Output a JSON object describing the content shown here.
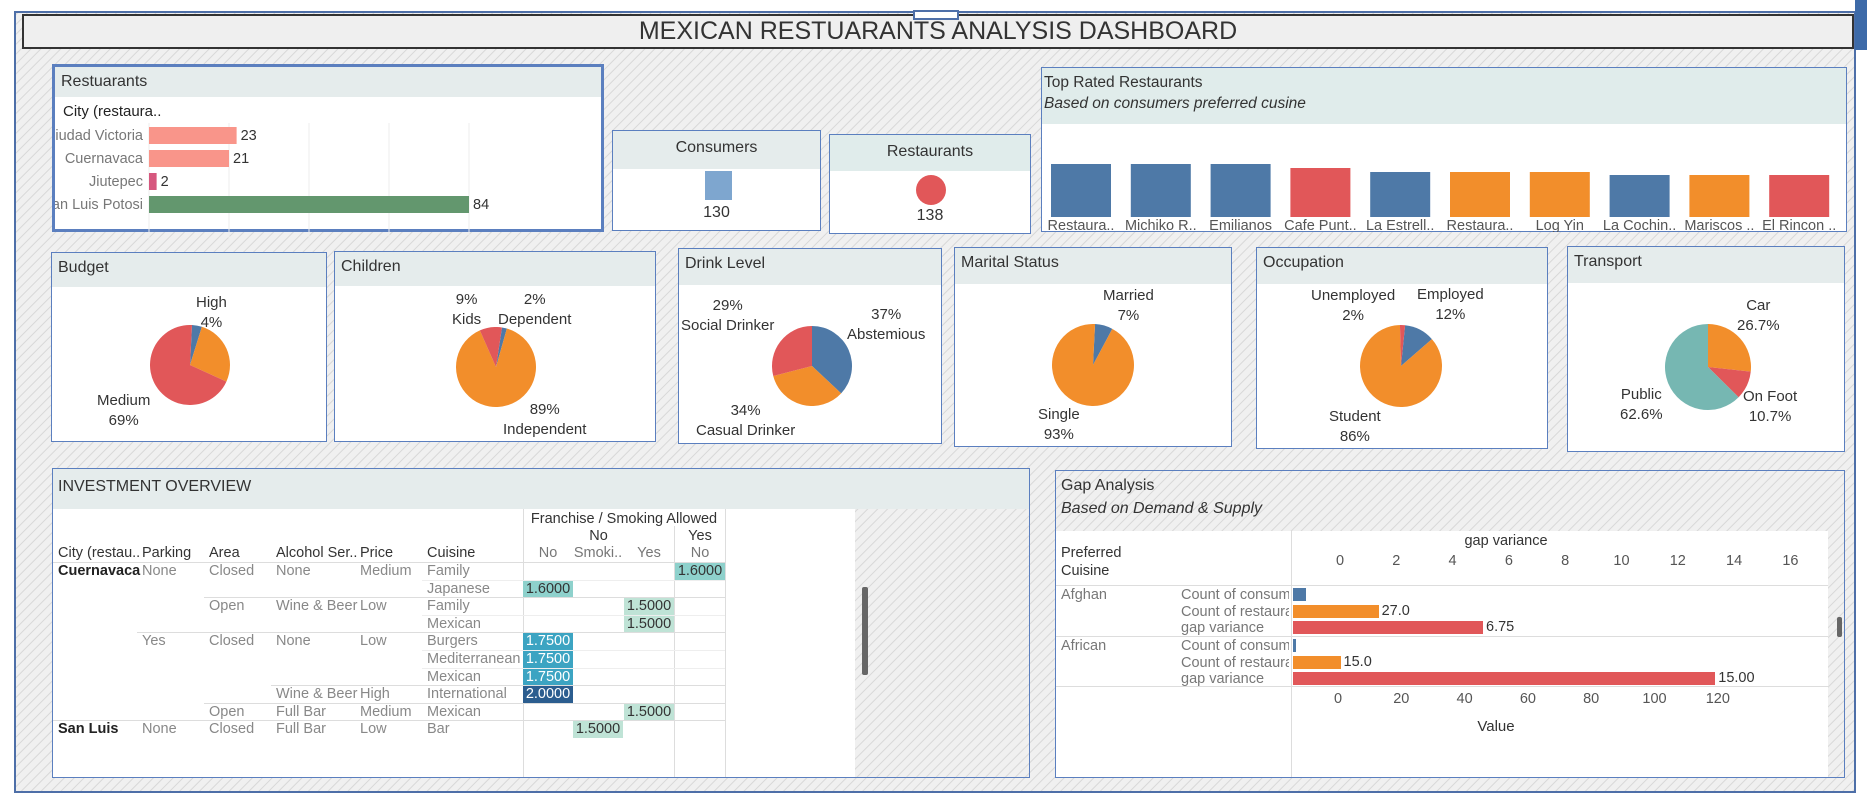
{
  "dashboard_title": "MEXICAN RESTUARANTS ANALYSIS DASHBOARD",
  "colors": {
    "blue": "#4e79a7",
    "orange": "#f28e2b",
    "red": "#e15759",
    "teal": "#76b7b2",
    "salmon": "#f9958a",
    "green": "#63976e",
    "pink": "#d6577e",
    "lightblue": "#7ea6cf"
  },
  "restaurants_city": {
    "title": "Restuarants",
    "col_header": "City (restaura..",
    "rows": [
      {
        "city": "Ciudad Victoria",
        "value": 23,
        "color": "#f9958a"
      },
      {
        "city": "Cuernavaca",
        "value": 21,
        "color": "#f9958a"
      },
      {
        "city": "Jiutepec",
        "value": 2,
        "color": "#d6577e"
      },
      {
        "city": "San Luis Potosi",
        "value": 84,
        "color": "#63976e"
      }
    ],
    "max": 84
  },
  "kpis": {
    "consumers": {
      "title": "Consumers",
      "value": "130"
    },
    "restaurants": {
      "title": "Restaurants",
      "value": "138"
    }
  },
  "top_rated": {
    "title": "Top Rated Restaurants",
    "subtitle": "Based on consumers preferred cusine",
    "bars": [
      {
        "label": "Restaura..",
        "height": 0.66,
        "color": "#4e79a7"
      },
      {
        "label": "Michiko R..",
        "height": 0.66,
        "color": "#4e79a7"
      },
      {
        "label": "Emilianos",
        "height": 0.66,
        "color": "#4e79a7"
      },
      {
        "label": "Cafe Punt..",
        "height": 0.62,
        "color": "#e15759"
      },
      {
        "label": "La Estrell..",
        "height": 0.58,
        "color": "#4e79a7"
      },
      {
        "label": "Restaura..",
        "height": 0.58,
        "color": "#f28e2b"
      },
      {
        "label": "Log Yin",
        "height": 0.58,
        "color": "#f28e2b"
      },
      {
        "label": "La Cochin..",
        "height": 0.55,
        "color": "#4e79a7"
      },
      {
        "label": "Mariscos ..",
        "height": 0.55,
        "color": "#f28e2b"
      },
      {
        "label": "El Rincon ..",
        "height": 0.55,
        "color": "#e15759"
      }
    ]
  },
  "pies": {
    "budget": {
      "title": "Budget",
      "slices": [
        {
          "label": "High",
          "pct": "4%",
          "value": 4,
          "color": "#4e79a7"
        },
        {
          "label": "",
          "pct": "",
          "value": 27,
          "color": "#f28e2b"
        },
        {
          "label": "Medium",
          "pct": "69%",
          "value": 69,
          "color": "#e15759"
        }
      ]
    },
    "children": {
      "title": "Children",
      "slices": [
        {
          "label": "Kids",
          "pct": "9%",
          "value": 9,
          "color": "#e15759"
        },
        {
          "label": "Dependent",
          "pct": "2%",
          "value": 2,
          "color": "#4e79a7"
        },
        {
          "label": "Independent",
          "pct": "89%",
          "value": 89,
          "color": "#f28e2b"
        }
      ]
    },
    "drink": {
      "title": "Drink Level",
      "slices": [
        {
          "label": "Abstemious",
          "pct": "37%",
          "value": 37,
          "color": "#4e79a7"
        },
        {
          "label": "Casual Drinker",
          "pct": "34%",
          "value": 34,
          "color": "#f28e2b"
        },
        {
          "label": "Social Drinker",
          "pct": "29%",
          "value": 29,
          "color": "#e15759"
        }
      ]
    },
    "marital": {
      "title": "Marital Status",
      "slices": [
        {
          "label": "Married",
          "pct": "7%",
          "value": 7,
          "color": "#4e79a7"
        },
        {
          "label": "Single",
          "pct": "93%",
          "value": 93,
          "color": "#f28e2b"
        }
      ]
    },
    "occupation": {
      "title": "Occupation",
      "slices": [
        {
          "label": "Employed",
          "pct": "12%",
          "value": 12,
          "color": "#4e79a7"
        },
        {
          "label": "Student",
          "pct": "86%",
          "value": 86,
          "color": "#f28e2b"
        },
        {
          "label": "Unemployed",
          "pct": "2%",
          "value": 2,
          "color": "#e15759"
        }
      ]
    },
    "transport": {
      "title": "Transport",
      "slices": [
        {
          "label": "Car",
          "pct": "26.7%",
          "value": 26.7,
          "color": "#f28e2b"
        },
        {
          "label": "On Foot",
          "pct": "10.7%",
          "value": 10.7,
          "color": "#e15759"
        },
        {
          "label": "Public",
          "pct": "62.6%",
          "value": 62.6,
          "color": "#76b7b2"
        }
      ]
    }
  },
  "investment": {
    "title": "INVESTMENT OVERVIEW",
    "group_header": "Franchise  /  Smoking Allowed",
    "franchise_no": "No",
    "franchise_yes": "Yes",
    "sub_cols": [
      "No",
      "Smoki..",
      "Yes",
      "No"
    ],
    "columns": [
      "City (restau..",
      "Parking",
      "Area",
      "Alcohol Ser..",
      "Price",
      "Cuisine"
    ],
    "rows": [
      {
        "city": "Cuernavaca",
        "parking": "None",
        "area": "Closed",
        "alcohol": "None",
        "price": "Medium",
        "cuisine": "Family",
        "vals": [
          "",
          "",
          "",
          "1.6000"
        ]
      },
      {
        "city": "",
        "parking": "",
        "area": "",
        "alcohol": "",
        "price": "",
        "cuisine": "Japanese",
        "vals": [
          "1.6000",
          "",
          "",
          ""
        ]
      },
      {
        "city": "",
        "parking": "",
        "area": "Open",
        "alcohol": "Wine & Beer",
        "price": "Low",
        "cuisine": "Family",
        "vals": [
          "",
          "",
          "1.5000",
          ""
        ]
      },
      {
        "city": "",
        "parking": "",
        "area": "",
        "alcohol": "",
        "price": "",
        "cuisine": "Mexican",
        "vals": [
          "",
          "",
          "1.5000",
          ""
        ]
      },
      {
        "city": "",
        "parking": "Yes",
        "area": "Closed",
        "alcohol": "None",
        "price": "Low",
        "cuisine": "Burgers",
        "vals": [
          "1.7500",
          "",
          "",
          ""
        ]
      },
      {
        "city": "",
        "parking": "",
        "area": "",
        "alcohol": "",
        "price": "",
        "cuisine": "Mediterranean",
        "vals": [
          "1.7500",
          "",
          "",
          ""
        ]
      },
      {
        "city": "",
        "parking": "",
        "area": "",
        "alcohol": "",
        "price": "",
        "cuisine": "Mexican",
        "vals": [
          "1.7500",
          "",
          "",
          ""
        ]
      },
      {
        "city": "",
        "parking": "",
        "area": "",
        "alcohol": "Wine & Beer",
        "price": "High",
        "cuisine": "International",
        "vals": [
          "2.0000",
          "",
          "",
          ""
        ]
      },
      {
        "city": "",
        "parking": "",
        "area": "Open",
        "alcohol": "Full Bar",
        "price": "Medium",
        "cuisine": "Mexican",
        "vals": [
          "",
          "",
          "1.5000",
          ""
        ]
      },
      {
        "city": "San Luis",
        "parking": "None",
        "area": "Closed",
        "alcohol": "Full Bar",
        "price": "Low",
        "cuisine": "Bar",
        "vals": [
          "",
          "1.5000",
          "",
          ""
        ]
      }
    ]
  },
  "gap": {
    "title": "Gap Analysis",
    "subtitle": "Based on Demand & Supply",
    "row_header": [
      "Preferred",
      "Cuisine"
    ],
    "top_axis_title": "gap variance",
    "top_ticks": [
      "0",
      "2",
      "4",
      "6",
      "8",
      "10",
      "12",
      "14",
      "16"
    ],
    "bottom_ticks": [
      "0",
      "20",
      "40",
      "60",
      "80",
      "100",
      "120"
    ],
    "bottom_axis_title": "Value",
    "groups": [
      {
        "cuisine": "Afghan",
        "rows": [
          {
            "measure": "Count of consumers..",
            "value": 4,
            "label": "",
            "color": "#4e79a7",
            "axis": "bottom"
          },
          {
            "measure": "Count of restaurant..",
            "value": 27,
            "label": "27.0",
            "color": "#f28e2b",
            "axis": "bottom"
          },
          {
            "measure": "gap variance",
            "value": 6.75,
            "label": "6.75",
            "color": "#e15759",
            "axis": "top"
          }
        ]
      },
      {
        "cuisine": "African",
        "rows": [
          {
            "measure": "Count of consumers..",
            "value": 1,
            "label": "",
            "color": "#4e79a7",
            "axis": "bottom"
          },
          {
            "measure": "Count of restaurant..",
            "value": 15,
            "label": "15.0",
            "color": "#f28e2b",
            "axis": "bottom"
          },
          {
            "measure": "gap variance",
            "value": 15,
            "label": "15.00",
            "color": "#e15759",
            "axis": "top"
          }
        ]
      }
    ]
  }
}
